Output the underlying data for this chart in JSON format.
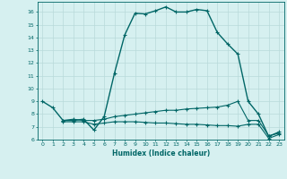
{
  "line1_x": [
    0,
    1,
    2,
    3,
    4,
    5,
    6,
    7,
    8,
    9,
    10,
    11,
    12,
    13,
    14,
    15,
    16,
    17,
    18,
    19,
    20,
    21,
    22,
    23
  ],
  "line1_y": [
    9.0,
    8.5,
    7.5,
    7.5,
    7.6,
    6.75,
    7.8,
    11.2,
    14.2,
    15.9,
    15.85,
    16.1,
    16.4,
    16.0,
    16.0,
    16.2,
    16.1,
    14.4,
    13.5,
    12.7,
    9.0,
    8.0,
    6.25,
    6.6
  ],
  "line2_x": [
    2,
    3,
    4,
    5,
    6,
    7,
    8,
    9,
    10,
    11,
    12,
    13,
    14,
    15,
    16,
    17,
    18,
    19,
    20,
    21,
    22,
    23
  ],
  "line2_y": [
    7.5,
    7.6,
    7.5,
    7.5,
    7.6,
    7.8,
    7.9,
    8.0,
    8.1,
    8.2,
    8.3,
    8.3,
    8.4,
    8.45,
    8.5,
    8.55,
    8.7,
    9.0,
    7.5,
    7.5,
    6.3,
    6.5
  ],
  "line3_x": [
    2,
    3,
    4,
    5,
    6,
    7,
    8,
    9,
    10,
    11,
    12,
    13,
    14,
    15,
    16,
    17,
    18,
    19,
    20,
    21,
    22,
    23
  ],
  "line3_y": [
    7.4,
    7.4,
    7.4,
    7.2,
    7.3,
    7.4,
    7.4,
    7.4,
    7.35,
    7.3,
    7.3,
    7.25,
    7.2,
    7.2,
    7.15,
    7.1,
    7.1,
    7.05,
    7.2,
    7.2,
    6.1,
    6.4
  ],
  "line_color": "#006666",
  "bg_color": "#d6f0f0",
  "grid_color": "#b8dada",
  "xlabel": "Humidex (Indice chaleur)",
  "ylim": [
    6,
    16.8
  ],
  "xlim": [
    -0.5,
    23.5
  ],
  "yticks": [
    6,
    7,
    8,
    9,
    10,
    11,
    12,
    13,
    14,
    15,
    16
  ],
  "xticks": [
    0,
    1,
    2,
    3,
    4,
    5,
    6,
    7,
    8,
    9,
    10,
    11,
    12,
    13,
    14,
    15,
    16,
    17,
    18,
    19,
    20,
    21,
    22,
    23
  ],
  "marker": "+",
  "markersize": 3.5,
  "linewidth1": 1.0,
  "linewidth2": 0.8,
  "linewidth3": 0.8
}
